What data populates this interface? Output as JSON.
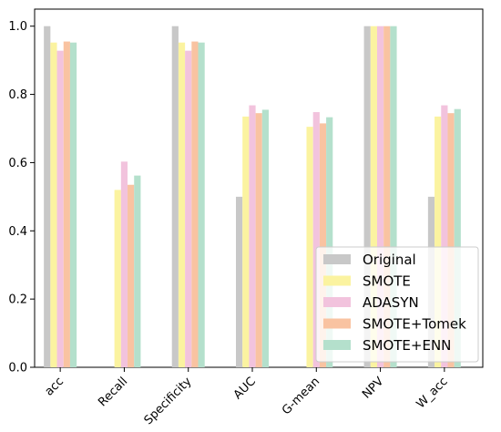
{
  "chart_data": {
    "type": "bar",
    "categories": [
      "acc",
      "Recall",
      "Specificity",
      "AUC",
      "G-mean",
      "NPV",
      "W_acc"
    ],
    "series": [
      {
        "name": "Original",
        "color": "#c8c8c8",
        "values": [
          1.0,
          0.0,
          1.0,
          0.5,
          0.0,
          1.0,
          0.5
        ]
      },
      {
        "name": "SMOTE",
        "color": "#fbf3a0",
        "values": [
          0.952,
          0.52,
          0.952,
          0.735,
          0.705,
          1.0,
          0.735
        ]
      },
      {
        "name": "ADASYN",
        "color": "#f2c3dd",
        "values": [
          0.928,
          0.603,
          0.928,
          0.768,
          0.748,
          1.0,
          0.768
        ]
      },
      {
        "name": "SMOTE+Tomek",
        "color": "#f9c3a1",
        "values": [
          0.955,
          0.535,
          0.955,
          0.745,
          0.715,
          1.0,
          0.745
        ]
      },
      {
        "name": "SMOTE+ENN",
        "color": "#b4e0cc",
        "values": [
          0.952,
          0.562,
          0.952,
          0.755,
          0.733,
          1.0,
          0.757
        ]
      }
    ],
    "ylim": [
      0,
      1.05
    ],
    "yticks": [
      "0.0",
      "0.2",
      "0.4",
      "0.6",
      "0.8",
      "1.0"
    ],
    "legend": "lower-right",
    "grid": false
  }
}
